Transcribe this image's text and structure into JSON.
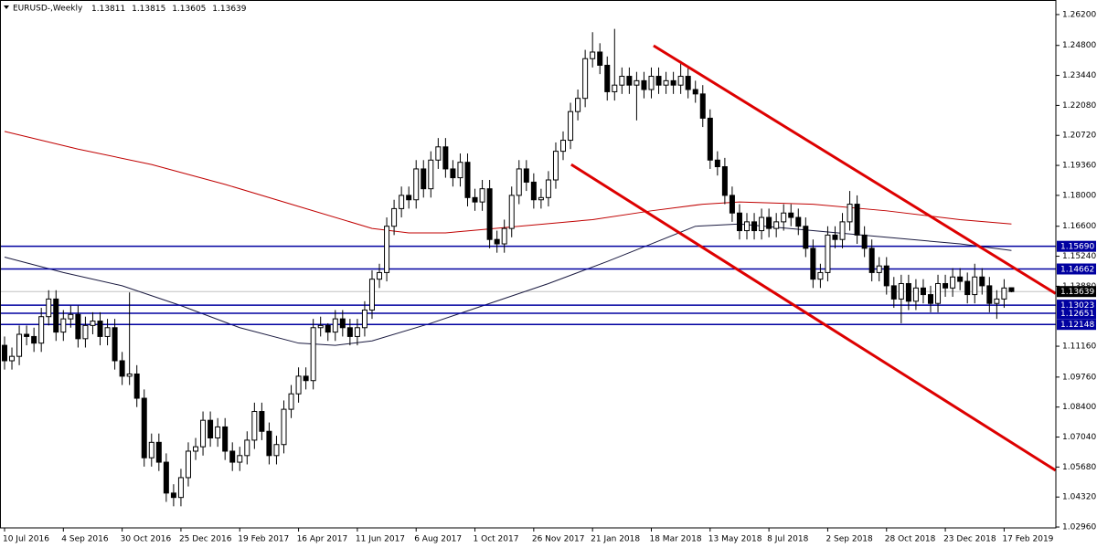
{
  "chart_data": {
    "type": "candlestick",
    "title": "EURUSD-,Weekly",
    "categories": [
      "10 Jul 2016",
      null,
      null,
      null,
      null,
      null,
      null,
      null,
      "4 Sep 2016",
      null,
      null,
      null,
      null,
      null,
      null,
      null,
      "30 Oct 2016",
      null,
      null,
      null,
      null,
      null,
      null,
      null,
      "25 Dec 2016",
      null,
      null,
      null,
      null,
      null,
      null,
      null,
      "19 Feb 2017",
      null,
      null,
      null,
      null,
      null,
      null,
      null,
      "16 Apr 2017",
      null,
      null,
      null,
      null,
      null,
      null,
      null,
      "11 Jun 2017",
      null,
      null,
      null,
      null,
      null,
      null,
      null,
      "6 Aug 2017",
      null,
      null,
      null,
      null,
      null,
      null,
      null,
      "1 Oct 2017",
      null,
      null,
      null,
      null,
      null,
      null,
      null,
      "26 Nov 2017",
      null,
      null,
      null,
      null,
      null,
      null,
      null,
      "21 Jan 2018",
      null,
      null,
      null,
      null,
      null,
      null,
      null,
      "18 Mar 2018",
      null,
      null,
      null,
      null,
      null,
      null,
      null,
      "13 May 2018",
      null,
      null,
      null,
      null,
      null,
      null,
      null,
      "8 Jul 2018",
      null,
      null,
      null,
      null,
      null,
      null,
      null,
      "2 Sep 2018",
      null,
      null,
      null,
      null,
      null,
      null,
      null,
      "28 Oct 2018",
      null,
      null,
      null,
      null,
      null,
      null,
      null,
      "23 Dec 2018",
      null,
      null,
      null,
      null,
      null,
      null,
      null,
      "17 Feb 2019",
      null
    ],
    "open": [
      1.112,
      1.105,
      1.107,
      1.117,
      1.116,
      1.113,
      1.125,
      1.133,
      1.118,
      1.124,
      1.126,
      1.115,
      1.121,
      1.123,
      1.116,
      1.12,
      1.105,
      1.098,
      1.099,
      1.088,
      1.061,
      1.068,
      1.059,
      1.045,
      1.043,
      1.052,
      1.064,
      1.066,
      1.078,
      1.07,
      1.075,
      1.064,
      1.059,
      1.062,
      1.069,
      1.082,
      1.073,
      1.062,
      1.067,
      1.083,
      1.09,
      1.098,
      1.096,
      1.12,
      1.121,
      1.118,
      1.124,
      1.12,
      1.116,
      1.12,
      1.128,
      1.142,
      1.145,
      1.166,
      1.174,
      1.18,
      1.178,
      1.192,
      1.183,
      1.196,
      1.202,
      1.192,
      1.188,
      1.195,
      1.179,
      1.177,
      1.183,
      1.16,
      1.158,
      1.165,
      1.18,
      1.192,
      1.186,
      1.178,
      1.179,
      1.187,
      1.2,
      1.205,
      1.218,
      1.224,
      1.242,
      1.245,
      1.239,
      1.227,
      1.23,
      1.234,
      1.23,
      1.232,
      1.228,
      1.234,
      1.23,
      1.232,
      1.23,
      1.234,
      1.228,
      1.226,
      1.215,
      1.196,
      1.193,
      1.18,
      1.172,
      1.164,
      1.168,
      1.164,
      1.17,
      1.165,
      1.168,
      1.172,
      1.17,
      1.166,
      1.156,
      1.142,
      1.145,
      1.162,
      1.16,
      1.168,
      1.176,
      1.162,
      1.156,
      1.145,
      1.148,
      1.139,
      1.133,
      1.14,
      1.132,
      1.138,
      1.135,
      1.131,
      1.14,
      1.138,
      1.143,
      1.141,
      1.135,
      1.143,
      1.139,
      1.131,
      1.133,
      1.13811
    ],
    "high": [
      1.116,
      1.111,
      1.121,
      1.121,
      1.12,
      1.129,
      1.137,
      1.137,
      1.128,
      1.13,
      1.13,
      1.125,
      1.127,
      1.127,
      1.124,
      1.124,
      1.109,
      1.136,
      1.103,
      1.092,
      1.072,
      1.072,
      1.063,
      1.049,
      1.056,
      1.068,
      1.07,
      1.082,
      1.082,
      1.079,
      1.079,
      1.068,
      1.066,
      1.073,
      1.086,
      1.086,
      1.077,
      1.071,
      1.087,
      1.094,
      1.102,
      1.102,
      1.124,
      1.125,
      1.122,
      1.128,
      1.128,
      1.124,
      1.124,
      1.132,
      1.146,
      1.149,
      1.17,
      1.178,
      1.184,
      1.184,
      1.196,
      1.196,
      1.2,
      1.206,
      1.206,
      1.196,
      1.199,
      1.199,
      1.183,
      1.187,
      1.187,
      1.164,
      1.169,
      1.184,
      1.196,
      1.196,
      1.19,
      1.183,
      1.191,
      1.204,
      1.209,
      1.222,
      1.228,
      1.246,
      1.254,
      1.249,
      1.243,
      1.2555,
      1.238,
      1.238,
      1.236,
      1.236,
      1.238,
      1.238,
      1.236,
      1.236,
      1.241,
      1.238,
      1.232,
      1.23,
      1.219,
      1.2,
      1.197,
      1.184,
      1.176,
      1.172,
      1.172,
      1.174,
      1.174,
      1.172,
      1.176,
      1.176,
      1.174,
      1.17,
      1.16,
      1.149,
      1.166,
      1.166,
      1.172,
      1.182,
      1.18,
      1.166,
      1.16,
      1.152,
      1.152,
      1.143,
      1.144,
      1.144,
      1.142,
      1.142,
      1.139,
      1.144,
      1.144,
      1.147,
      1.147,
      1.145,
      1.149,
      1.147,
      1.143,
      1.137,
      1.142,
      1.13815
    ],
    "low": [
      1.101,
      1.101,
      1.103,
      1.112,
      1.109,
      1.109,
      1.121,
      1.114,
      1.114,
      1.12,
      1.111,
      1.111,
      1.117,
      1.112,
      1.112,
      1.101,
      1.094,
      1.094,
      1.084,
      1.057,
      1.057,
      1.055,
      1.041,
      1.039,
      1.039,
      1.048,
      1.06,
      1.062,
      1.066,
      1.066,
      1.06,
      1.055,
      1.055,
      1.058,
      1.065,
      1.069,
      1.058,
      1.058,
      1.063,
      1.079,
      1.086,
      1.092,
      1.092,
      1.116,
      1.114,
      1.114,
      1.116,
      1.112,
      1.112,
      1.116,
      1.124,
      1.138,
      1.141,
      1.162,
      1.17,
      1.174,
      1.174,
      1.179,
      1.179,
      1.192,
      1.188,
      1.184,
      1.184,
      1.175,
      1.173,
      1.173,
      1.156,
      1.154,
      1.154,
      1.161,
      1.176,
      1.182,
      1.174,
      1.174,
      1.175,
      1.183,
      1.196,
      1.201,
      1.214,
      1.22,
      1.238,
      1.235,
      1.223,
      1.223,
      1.226,
      1.226,
      1.214,
      1.224,
      1.224,
      1.226,
      1.226,
      1.226,
      1.226,
      1.224,
      1.222,
      1.211,
      1.192,
      1.189,
      1.176,
      1.168,
      1.16,
      1.16,
      1.16,
      1.16,
      1.161,
      1.161,
      1.164,
      1.166,
      1.162,
      1.152,
      1.138,
      1.138,
      1.141,
      1.156,
      1.156,
      1.164,
      1.158,
      1.152,
      1.141,
      1.141,
      1.135,
      1.129,
      1.122,
      1.128,
      1.128,
      1.131,
      1.127,
      1.127,
      1.134,
      1.134,
      1.137,
      1.131,
      1.131,
      1.135,
      1.127,
      1.124,
      1.129,
      1.13605
    ],
    "close": [
      1.105,
      1.107,
      1.117,
      1.116,
      1.113,
      1.125,
      1.133,
      1.118,
      1.124,
      1.126,
      1.115,
      1.121,
      1.123,
      1.116,
      1.12,
      1.105,
      1.098,
      1.099,
      1.088,
      1.061,
      1.068,
      1.059,
      1.045,
      1.043,
      1.052,
      1.064,
      1.066,
      1.078,
      1.07,
      1.075,
      1.064,
      1.059,
      1.062,
      1.069,
      1.082,
      1.073,
      1.062,
      1.067,
      1.083,
      1.09,
      1.098,
      1.096,
      1.12,
      1.121,
      1.118,
      1.124,
      1.12,
      1.116,
      1.12,
      1.128,
      1.142,
      1.145,
      1.166,
      1.174,
      1.18,
      1.178,
      1.192,
      1.183,
      1.196,
      1.202,
      1.192,
      1.188,
      1.195,
      1.179,
      1.177,
      1.183,
      1.16,
      1.158,
      1.165,
      1.18,
      1.192,
      1.186,
      1.178,
      1.179,
      1.187,
      1.2,
      1.205,
      1.218,
      1.224,
      1.242,
      1.245,
      1.239,
      1.227,
      1.23,
      1.234,
      1.23,
      1.232,
      1.228,
      1.234,
      1.23,
      1.232,
      1.23,
      1.234,
      1.228,
      1.226,
      1.215,
      1.196,
      1.193,
      1.18,
      1.172,
      1.164,
      1.168,
      1.164,
      1.17,
      1.165,
      1.168,
      1.172,
      1.17,
      1.166,
      1.156,
      1.142,
      1.145,
      1.162,
      1.16,
      1.168,
      1.176,
      1.162,
      1.156,
      1.145,
      1.148,
      1.139,
      1.133,
      1.14,
      1.132,
      1.138,
      1.135,
      1.131,
      1.14,
      1.138,
      1.143,
      1.141,
      1.135,
      1.143,
      1.139,
      1.131,
      1.133,
      1.138,
      1.13639
    ],
    "up_color": "#ffffff",
    "down_color": "#000000",
    "candle_outline": "#000000",
    "xlim": [
      -0.62,
      143.04
    ],
    "ylim": [
      1.0292,
      1.2686
    ],
    "yticks": [
      {
        "value": 1.262,
        "label": "1.26200"
      },
      {
        "value": 1.248,
        "label": "1.24800"
      },
      {
        "value": 1.2344,
        "label": "1.23440"
      },
      {
        "value": 1.2208,
        "label": "1.22080"
      },
      {
        "value": 1.2072,
        "label": "1.20720"
      },
      {
        "value": 1.1936,
        "label": "1.19360"
      },
      {
        "value": 1.18,
        "label": "1.18000"
      },
      {
        "value": 1.166,
        "label": "1.16600"
      },
      {
        "value": 1.1524,
        "label": "1.15240"
      },
      {
        "value": 1.1388,
        "label": "1.13880"
      },
      {
        "value": 1.1116,
        "label": "1.11160"
      },
      {
        "value": 1.0976,
        "label": "1.09760"
      },
      {
        "value": 1.084,
        "label": "1.08400"
      },
      {
        "value": 1.0704,
        "label": "1.07040"
      },
      {
        "value": 1.0568,
        "label": "1.05680"
      },
      {
        "value": 1.0432,
        "label": "1.04320"
      },
      {
        "value": 1.0296,
        "label": "1.02960"
      }
    ],
    "moving_averages": [
      {
        "color": "#c00000",
        "x": [
          0,
          10,
          20,
          30,
          40,
          50,
          55,
          60,
          70,
          80,
          88,
          95,
          100,
          110,
          120,
          130,
          137
        ],
        "values": [
          1.209,
          1.201,
          1.194,
          1.185,
          1.175,
          1.165,
          1.163,
          1.163,
          1.166,
          1.169,
          1.173,
          1.176,
          1.177,
          1.176,
          1.173,
          1.169,
          1.167
        ]
      },
      {
        "color": "#1a1a40",
        "x": [
          0,
          8,
          16,
          24,
          32,
          40,
          45,
          50,
          58,
          66,
          74,
          82,
          88,
          94,
          100,
          110,
          120,
          130,
          137
        ],
        "values": [
          1.152,
          1.145,
          1.139,
          1.13,
          1.12,
          1.113,
          1.112,
          1.114,
          1.122,
          1.131,
          1.14,
          1.15,
          1.158,
          1.166,
          1.167,
          1.164,
          1.161,
          1.158,
          1.155
        ]
      }
    ],
    "trendlines": [
      {
        "color": "#dd0000",
        "x": [
          88.3,
          143
        ],
        "values": [
          1.2479,
          1.1355
        ]
      },
      {
        "color": "#dd0000",
        "x": [
          77.1,
          143
        ],
        "values": [
          1.194,
          1.0553
        ]
      }
    ],
    "level_color": "#0000a0",
    "levels": [
      {
        "value": 1.1569,
        "label": "1.15690"
      },
      {
        "value": 1.14662,
        "label": "1.14662"
      },
      {
        "value": 1.13023,
        "label": "1.13023"
      },
      {
        "value": 1.12651,
        "label": "1.12651"
      },
      {
        "value": 1.12148,
        "label": "1.12148"
      }
    ]
  }
}
